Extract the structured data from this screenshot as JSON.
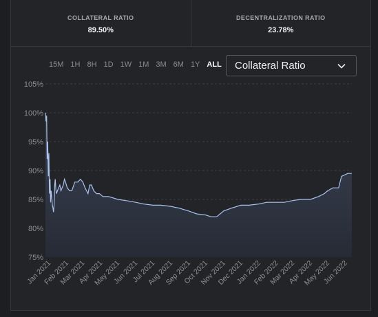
{
  "stats": [
    {
      "label": "COLLATERAL RATIO",
      "value": "89.50%"
    },
    {
      "label": "DECENTRALIZATION RATIO",
      "value": "23.78%"
    }
  ],
  "time_ranges": [
    "15M",
    "1H",
    "8H",
    "1D",
    "1W",
    "1M",
    "3M",
    "6M",
    "1Y",
    "ALL"
  ],
  "selected_range": "ALL",
  "metric_select": {
    "value": "Collateral Ratio",
    "icon": "chevron-down-icon"
  },
  "colors": {
    "line": "#a9c3ec",
    "fill_top": "#3b4252",
    "fill_bottom": "#262b36",
    "grid": "#3c3d42"
  },
  "chart_data": {
    "type": "area",
    "y_ticks": [
      "105%",
      "100%",
      "95%",
      "90%",
      "85%",
      "80%",
      "75%"
    ],
    "ylim": [
      75,
      105
    ],
    "x_ticks": [
      "Jan 2021",
      "Feb 2021",
      "Mar 2021",
      "Apr 2021",
      "May 2021",
      "Jun 2021",
      "Jul 2021",
      "Aug 2021",
      "Sep 2021",
      "Oct 2021",
      "Nov 2021",
      "Dec 2021",
      "Jan 2022",
      "Feb 2022",
      "Mar 2022",
      "Apr 2022",
      "May 2022",
      "Jun 2022"
    ],
    "grid": true,
    "series": [
      {
        "x": [
          "2020-12-26",
          "2020-12-27",
          "2020-12-28",
          "2020-12-29",
          "2020-12-30",
          "2020-12-31",
          "2021-01-01",
          "2021-01-02",
          "2021-01-03",
          "2021-01-04",
          "2021-01-05",
          "2021-01-06",
          "2021-01-07",
          "2021-01-08",
          "2021-01-09",
          "2021-01-10",
          "2021-01-11",
          "2021-01-12",
          "2021-01-13",
          "2021-01-14",
          "2021-01-16",
          "2021-01-18",
          "2021-01-20",
          "2021-01-22",
          "2021-01-24",
          "2021-01-26",
          "2021-01-28",
          "2021-01-30",
          "2021-02-02",
          "2021-02-06",
          "2021-02-10",
          "2021-02-15",
          "2021-02-20",
          "2021-02-25",
          "2021-03-01",
          "2021-03-05",
          "2021-03-10",
          "2021-03-13",
          "2021-03-16",
          "2021-03-20",
          "2021-03-25",
          "2021-03-30",
          "2021-04-05",
          "2021-04-15",
          "2021-05-01",
          "2021-05-15",
          "2021-06-01",
          "2021-06-15",
          "2021-07-01",
          "2021-07-15",
          "2021-08-01",
          "2021-08-15",
          "2021-09-01",
          "2021-09-15",
          "2021-10-01",
          "2021-10-10",
          "2021-10-20",
          "2021-11-01",
          "2021-11-15",
          "2021-12-01",
          "2021-12-15",
          "2022-01-01",
          "2022-01-15",
          "2022-02-01",
          "2022-02-15",
          "2022-03-01",
          "2022-03-15",
          "2022-04-01",
          "2022-04-15",
          "2022-04-25",
          "2022-05-01",
          "2022-05-10",
          "2022-05-20",
          "2022-05-25",
          "2022-06-05",
          "2022-06-12"
        ],
        "y": [
          100.0,
          98.5,
          99.5,
          92.0,
          95.0,
          89.0,
          93.0,
          86.0,
          88.5,
          84.5,
          86.5,
          85.5,
          84.0,
          83.5,
          82.8,
          84.0,
          87.5,
          88.5,
          87.0,
          86.0,
          86.5,
          87.0,
          87.5,
          86.5,
          87.0,
          87.5,
          88.5,
          88.0,
          87.0,
          86.5,
          86.5,
          88.0,
          88.0,
          88.5,
          88.0,
          87.0,
          86.0,
          87.5,
          87.5,
          86.5,
          86.0,
          86.0,
          85.5,
          85.5,
          85.0,
          84.8,
          84.5,
          84.2,
          84.0,
          84.0,
          83.8,
          83.5,
          83.0,
          82.5,
          82.3,
          82.0,
          82.0,
          83.0,
          83.5,
          84.0,
          84.0,
          84.2,
          84.5,
          84.5,
          84.5,
          84.8,
          85.0,
          85.0,
          85.5,
          86.0,
          86.5,
          87.0,
          87.0,
          89.0,
          89.5,
          89.5
        ]
      }
    ]
  }
}
